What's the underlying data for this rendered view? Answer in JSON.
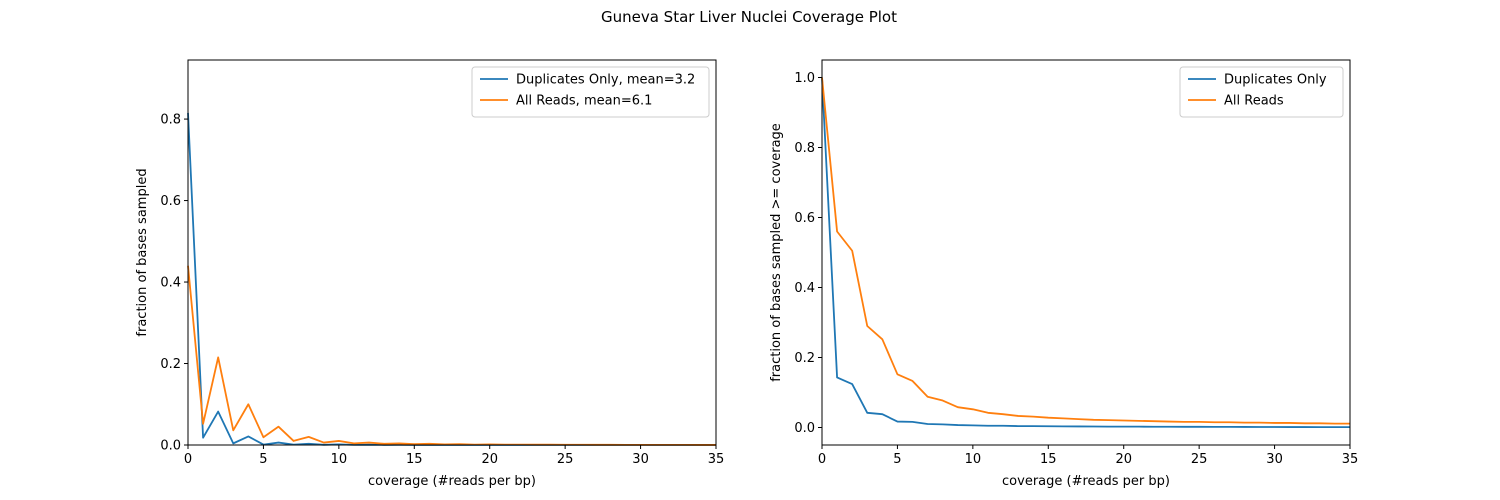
{
  "figure": {
    "title": "Guneva Star Liver Nuclei Coverage Plot"
  },
  "chart_data": [
    {
      "type": "line",
      "title": "",
      "xlabel": "coverage (#reads per bp)",
      "ylabel": "fraction of bases sampled",
      "xlim": [
        0,
        35
      ],
      "ylim": [
        0,
        0.945
      ],
      "xticks": [
        0,
        5,
        10,
        15,
        20,
        25,
        30,
        35
      ],
      "yticks": [
        0.0,
        0.2,
        0.4,
        0.6,
        0.8
      ],
      "ytick_labels": [
        "0.0",
        "0.2",
        "0.4",
        "0.6",
        "0.8"
      ],
      "grid": false,
      "legend": "upper-right",
      "x": [
        0,
        1,
        2,
        3,
        4,
        5,
        6,
        7,
        8,
        9,
        10,
        11,
        12,
        13,
        14,
        15,
        16,
        17,
        18,
        19,
        20,
        21,
        22,
        23,
        24,
        25,
        26,
        27,
        28,
        29,
        30,
        31,
        32,
        33,
        34,
        35
      ],
      "series": [
        {
          "name": "Duplicates Only, mean=3.2",
          "color": "#1f77b4",
          "values": [
            0.815,
            0.018,
            0.082,
            0.004,
            0.021,
            0.001,
            0.006,
            0.001,
            0.003,
            0.0005,
            0.0015,
            0.0003,
            0.0008,
            0.0002,
            0.0004,
            0.0001,
            0.0002,
            0.0001,
            0.0001,
            0,
            0,
            0,
            0,
            0,
            0,
            0,
            0,
            0,
            0,
            0,
            0,
            0,
            0,
            0,
            0,
            0
          ]
        },
        {
          "name": "All Reads, mean=6.1",
          "color": "#ff7f0e",
          "values": [
            0.44,
            0.052,
            0.215,
            0.036,
            0.1,
            0.019,
            0.045,
            0.01,
            0.02,
            0.006,
            0.01,
            0.004,
            0.006,
            0.003,
            0.004,
            0.002,
            0.003,
            0.0015,
            0.002,
            0.001,
            0.0015,
            0.001,
            0.001,
            0.0008,
            0.0008,
            0.0006,
            0.0006,
            0.0005,
            0.0005,
            0.0004,
            0.0004,
            0.0003,
            0.0003,
            0.0003,
            0.0002,
            0.0002
          ]
        }
      ]
    },
    {
      "type": "line",
      "title": "",
      "xlabel": "coverage (#reads per bp)",
      "ylabel": "fraction of bases sampled >= coverage",
      "xlim": [
        0,
        35
      ],
      "ylim": [
        -0.05,
        1.05
      ],
      "xticks": [
        0,
        5,
        10,
        15,
        20,
        25,
        30,
        35
      ],
      "yticks": [
        0.0,
        0.2,
        0.4,
        0.6,
        0.8,
        1.0
      ],
      "ytick_labels": [
        "0.0",
        "0.2",
        "0.4",
        "0.6",
        "0.8",
        "1.0"
      ],
      "grid": false,
      "legend": "upper-right",
      "x": [
        0,
        1,
        2,
        3,
        4,
        5,
        6,
        7,
        8,
        9,
        10,
        11,
        12,
        13,
        14,
        15,
        16,
        17,
        18,
        19,
        20,
        21,
        22,
        23,
        24,
        25,
        26,
        27,
        28,
        29,
        30,
        31,
        32,
        33,
        34,
        35
      ],
      "series": [
        {
          "name": "Duplicates Only",
          "color": "#1f77b4",
          "values": [
            1.0,
            0.143,
            0.124,
            0.042,
            0.038,
            0.017,
            0.016,
            0.01,
            0.009,
            0.007,
            0.006,
            0.005,
            0.005,
            0.004,
            0.004,
            0.0035,
            0.0033,
            0.003,
            0.0028,
            0.0026,
            0.0025,
            0.0024,
            0.0022,
            0.0021,
            0.002,
            0.0019,
            0.0018,
            0.0017,
            0.0016,
            0.0015,
            0.0014,
            0.0013,
            0.0012,
            0.0011,
            0.001,
            0.001
          ]
        },
        {
          "name": "All Reads",
          "color": "#ff7f0e",
          "values": [
            1.0,
            0.56,
            0.505,
            0.29,
            0.252,
            0.152,
            0.133,
            0.088,
            0.077,
            0.058,
            0.052,
            0.042,
            0.038,
            0.033,
            0.031,
            0.028,
            0.026,
            0.024,
            0.022,
            0.021,
            0.02,
            0.019,
            0.018,
            0.017,
            0.016,
            0.016,
            0.015,
            0.015,
            0.014,
            0.014,
            0.013,
            0.013,
            0.012,
            0.012,
            0.011,
            0.011
          ]
        }
      ]
    }
  ]
}
